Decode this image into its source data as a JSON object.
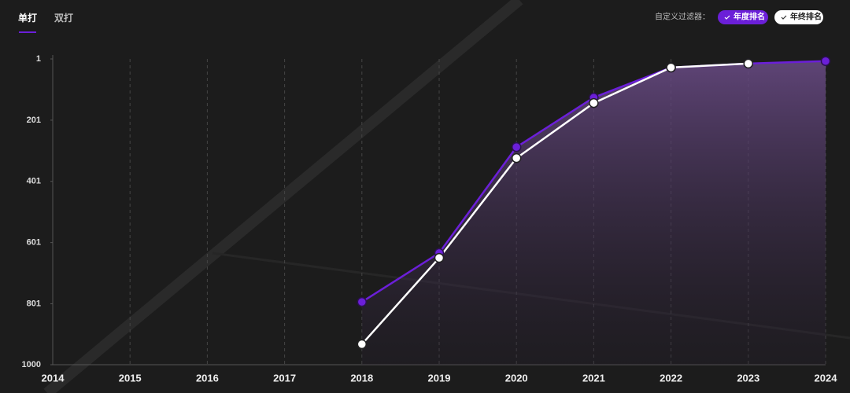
{
  "tabs": [
    "单打",
    "双打"
  ],
  "filter_label": "自定义过滤器：",
  "chart_data": {
    "type": "line",
    "categories": [
      "2014",
      "2015",
      "2016",
      "2017",
      "2018",
      "2019",
      "2020",
      "2021",
      "2022",
      "2023",
      "2024"
    ],
    "series": [
      {
        "name": "年度排名",
        "color": "#6b1fd8",
        "values": [
          null,
          null,
          null,
          null,
          795,
          635,
          289,
          127,
          29,
          16,
          8
        ]
      },
      {
        "name": "年终排名",
        "color": "#ffffff",
        "values": [
          null,
          null,
          null,
          null,
          933,
          651,
          325,
          145,
          29,
          16,
          null
        ]
      }
    ],
    "ylim": [
      1000,
      1
    ],
    "yticks": [
      1,
      201,
      401,
      601,
      801,
      1000
    ],
    "grid": true
  }
}
